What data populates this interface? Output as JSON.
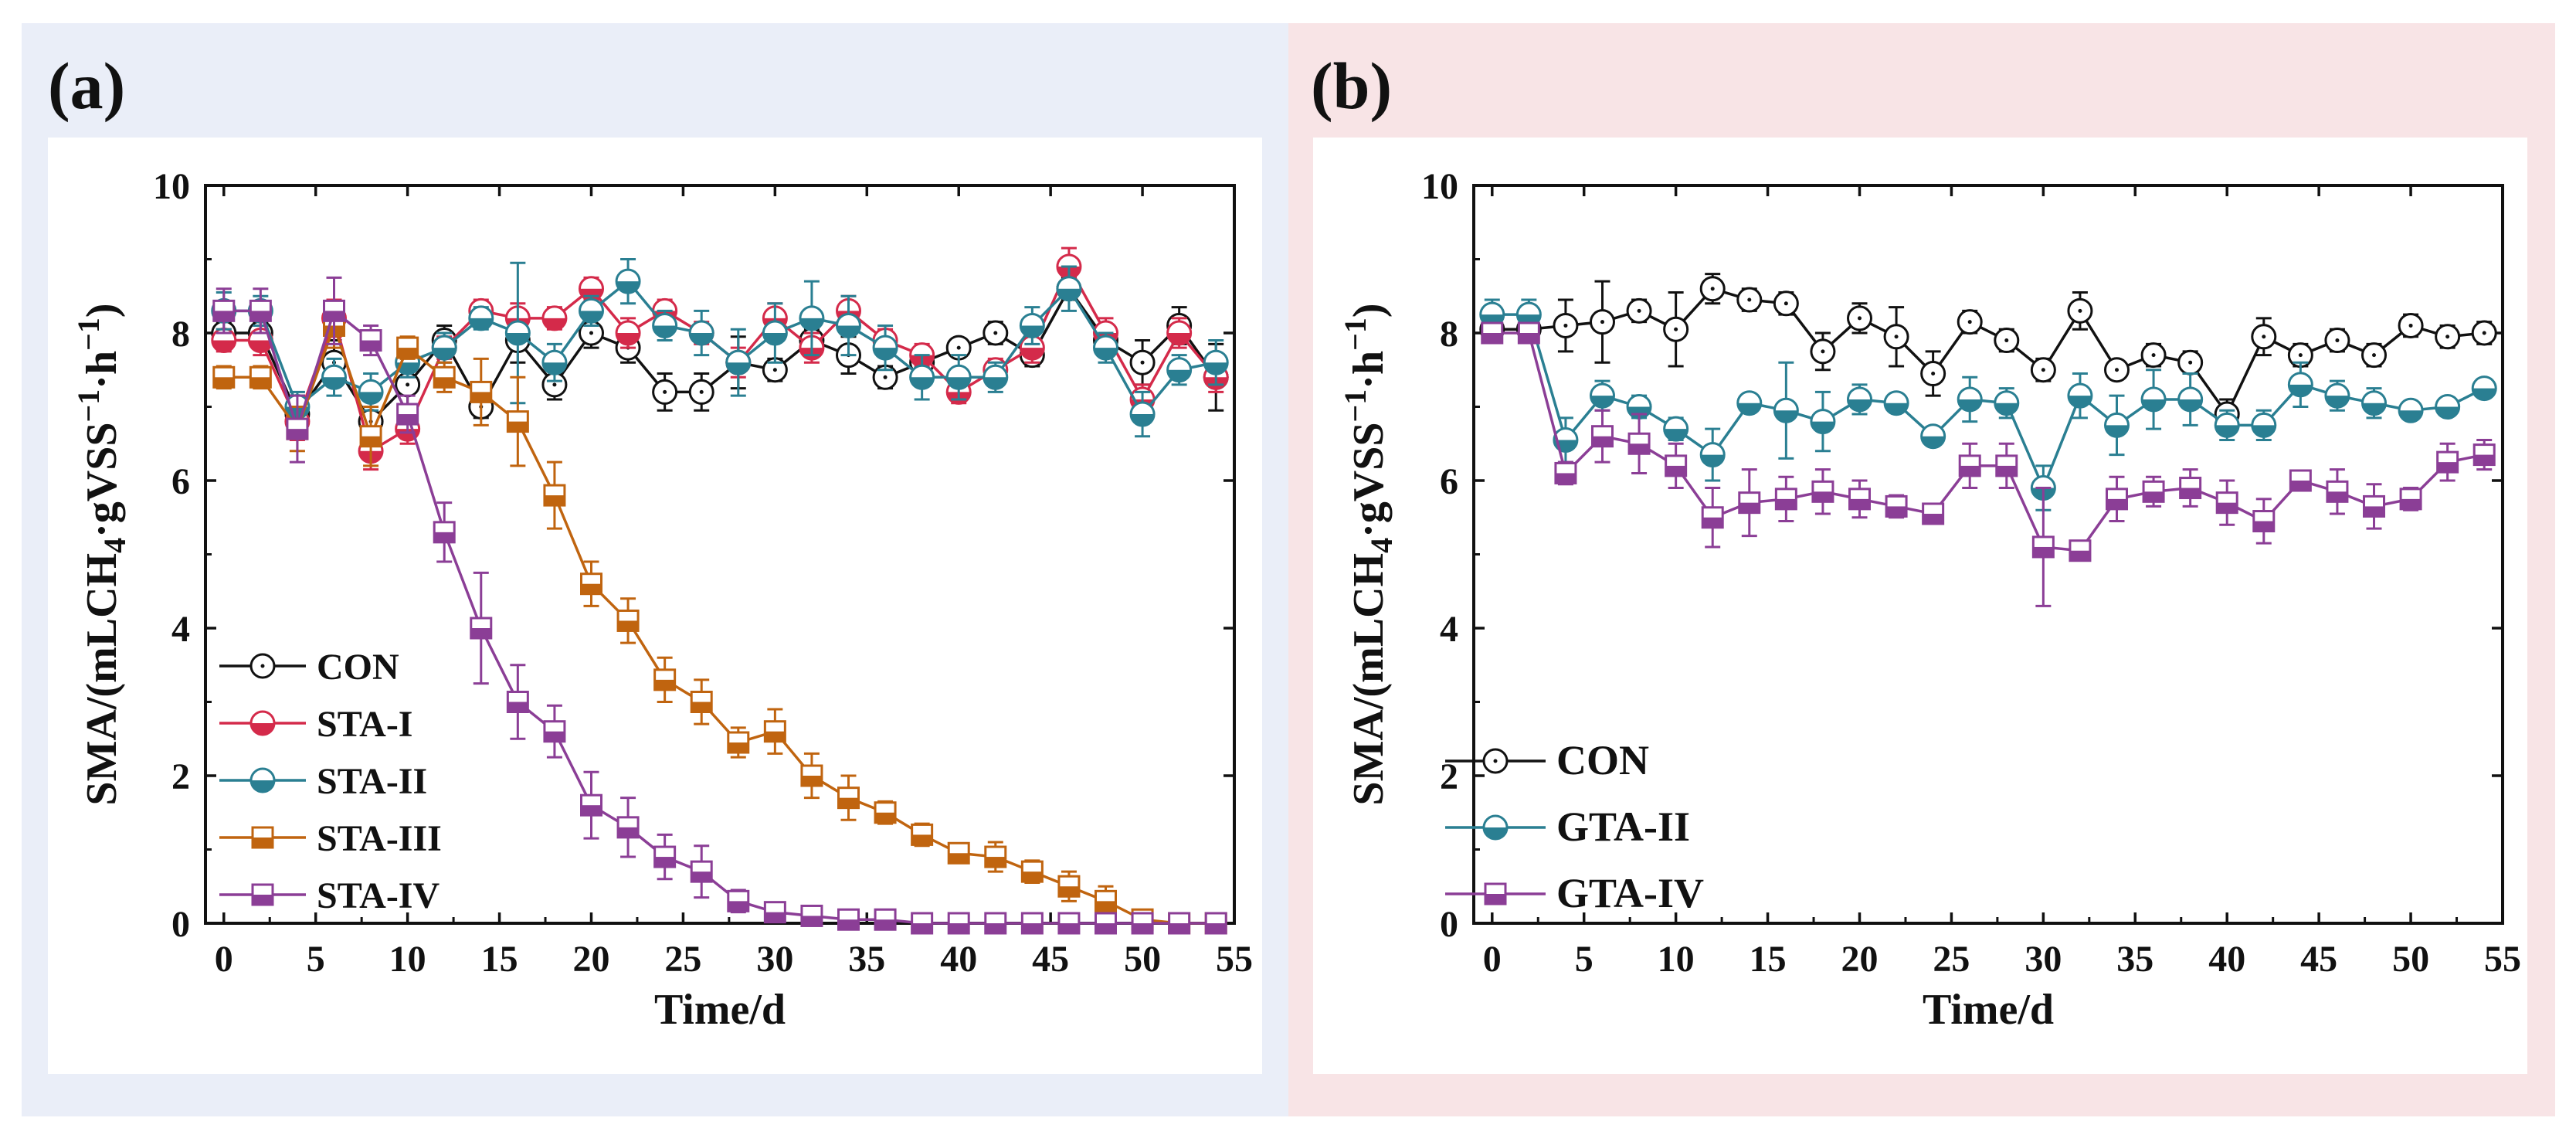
{
  "panels": {
    "a": {
      "label": "(a)",
      "bg": "#eaeef8"
    },
    "b": {
      "label": "(b)",
      "bg": "#f8e4e6"
    }
  },
  "chart_data": [
    {
      "type": "line",
      "panel": "a",
      "xlabel": "Time/d",
      "ylabel": "SMA/(mLCH4·gVSS−1·h−1)",
      "xlim": [
        -1,
        55
      ],
      "ylim": [
        0,
        10
      ],
      "xticks": [
        0,
        5,
        10,
        15,
        20,
        25,
        30,
        35,
        40,
        45,
        50,
        55
      ],
      "yticks": [
        0,
        2,
        4,
        6,
        8,
        10
      ],
      "legend_position": "bottom-left",
      "series": [
        {
          "name": "CON",
          "color": "#111111",
          "marker": "circle-open",
          "x": [
            0,
            2,
            4,
            6,
            8,
            10,
            12,
            14,
            16,
            18,
            20,
            22,
            24,
            26,
            28,
            30,
            32,
            34,
            36,
            38,
            40,
            42,
            44,
            46,
            48,
            50,
            52,
            54
          ],
          "y": [
            8.0,
            8.0,
            6.9,
            7.6,
            6.8,
            7.3,
            7.9,
            7.0,
            7.9,
            7.3,
            8.0,
            7.8,
            7.2,
            7.2,
            7.6,
            7.5,
            7.9,
            7.7,
            7.4,
            7.6,
            7.8,
            8.0,
            7.7,
            8.6,
            7.9,
            7.6,
            8.1,
            7.4
          ],
          "err": [
            0.15,
            0.15,
            0.25,
            0.3,
            0.4,
            0.35,
            0.2,
            0.15,
            0.3,
            0.2,
            0.2,
            0.2,
            0.25,
            0.25,
            0.35,
            0.15,
            0.15,
            0.25,
            0.15,
            0.1,
            0.1,
            0.15,
            0.15,
            0.15,
            0.2,
            0.3,
            0.25,
            0.45
          ]
        },
        {
          "name": "STA-I",
          "color": "#d42a4a",
          "marker": "circle-half",
          "x": [
            0,
            2,
            4,
            6,
            8,
            10,
            12,
            14,
            16,
            18,
            20,
            22,
            24,
            26,
            28,
            30,
            32,
            34,
            36,
            38,
            40,
            42,
            44,
            46,
            48,
            50,
            52,
            54
          ],
          "y": [
            7.9,
            7.9,
            6.8,
            8.2,
            6.4,
            6.7,
            7.8,
            8.3,
            8.2,
            8.2,
            8.6,
            8.0,
            8.3,
            8.0,
            7.6,
            8.2,
            7.8,
            8.3,
            7.9,
            7.7,
            7.2,
            7.5,
            7.8,
            8.9,
            8.0,
            7.1,
            8.0,
            7.4
          ],
          "err": [
            0.15,
            0.2,
            0.25,
            0.25,
            0.25,
            0.2,
            0.15,
            0.15,
            0.2,
            0.15,
            0.15,
            0.2,
            0.15,
            0.15,
            0.2,
            0.2,
            0.2,
            0.2,
            0.15,
            0.15,
            0.15,
            0.15,
            0.2,
            0.25,
            0.2,
            0.2,
            0.2,
            0.2
          ]
        },
        {
          "name": "STA-II",
          "color": "#2a7f92",
          "marker": "circle-half",
          "x": [
            0,
            2,
            4,
            6,
            8,
            10,
            12,
            14,
            16,
            18,
            20,
            22,
            24,
            26,
            28,
            30,
            32,
            34,
            36,
            38,
            40,
            42,
            44,
            46,
            48,
            50,
            52,
            54
          ],
          "y": [
            8.3,
            8.3,
            7.0,
            7.4,
            7.2,
            7.6,
            7.8,
            8.2,
            8.0,
            7.6,
            8.3,
            8.7,
            8.1,
            8.0,
            7.6,
            8.0,
            8.2,
            8.1,
            7.8,
            7.4,
            7.4,
            7.4,
            8.1,
            8.6,
            7.8,
            6.9,
            7.5,
            7.6
          ],
          "err": [
            0.25,
            0.2,
            0.2,
            0.25,
            0.25,
            0.2,
            0.2,
            0.15,
            0.95,
            0.25,
            0.2,
            0.3,
            0.2,
            0.3,
            0.45,
            0.4,
            0.5,
            0.4,
            0.3,
            0.3,
            0.3,
            0.2,
            0.25,
            0.3,
            0.2,
            0.3,
            0.2,
            0.3
          ]
        },
        {
          "name": "STA-III",
          "color": "#c0640f",
          "marker": "square-half",
          "x": [
            0,
            2,
            4,
            6,
            8,
            10,
            12,
            14,
            16,
            18,
            20,
            22,
            24,
            26,
            28,
            30,
            32,
            34,
            36,
            38,
            40,
            42,
            44,
            46,
            48,
            50,
            52,
            54
          ],
          "y": [
            7.4,
            7.4,
            6.7,
            8.1,
            6.6,
            7.8,
            7.4,
            7.2,
            6.8,
            5.8,
            4.6,
            4.1,
            3.3,
            3.0,
            2.45,
            2.6,
            2.0,
            1.7,
            1.5,
            1.2,
            0.95,
            0.9,
            0.7,
            0.5,
            0.3,
            0.05,
            0.0,
            0.0
          ],
          "err": [
            0.15,
            0.15,
            0.3,
            0.3,
            0.4,
            0.15,
            0.2,
            0.45,
            0.6,
            0.45,
            0.3,
            0.3,
            0.3,
            0.3,
            0.2,
            0.3,
            0.3,
            0.3,
            0.15,
            0.15,
            0.1,
            0.2,
            0.15,
            0.2,
            0.2,
            0.05,
            0.0,
            0.0
          ]
        },
        {
          "name": "STA-IV",
          "color": "#8b3e96",
          "marker": "square-half",
          "x": [
            0,
            2,
            4,
            6,
            8,
            10,
            12,
            14,
            16,
            18,
            20,
            22,
            24,
            26,
            28,
            30,
            32,
            34,
            36,
            38,
            40,
            42,
            44,
            46,
            48,
            50,
            52,
            54
          ],
          "y": [
            8.3,
            8.3,
            6.7,
            8.3,
            7.9,
            6.9,
            5.3,
            4.0,
            3.0,
            2.6,
            1.6,
            1.3,
            0.9,
            0.7,
            0.3,
            0.15,
            0.1,
            0.05,
            0.05,
            0.0,
            0.0,
            0.0,
            0.0,
            0.0,
            0.0,
            0.0,
            0.0,
            0.0
          ],
          "err": [
            0.3,
            0.3,
            0.45,
            0.45,
            0.2,
            0.25,
            0.4,
            0.75,
            0.5,
            0.35,
            0.45,
            0.4,
            0.3,
            0.35,
            0.15,
            0.1,
            0.08,
            0.05,
            0.05,
            0.0,
            0.0,
            0.0,
            0.0,
            0.0,
            0.0,
            0.0,
            0.0,
            0.0
          ]
        }
      ]
    },
    {
      "type": "line",
      "panel": "b",
      "xlabel": "Time/d",
      "ylabel": "SMA/(mLCH4·gVSS−1·h−1)",
      "xlim": [
        -1,
        55
      ],
      "ylim": [
        0,
        10
      ],
      "xticks": [
        0,
        5,
        10,
        15,
        20,
        25,
        30,
        35,
        40,
        45,
        50,
        55
      ],
      "yticks": [
        0,
        2,
        4,
        6,
        8,
        10
      ],
      "legend_position": "bottom-left",
      "series": [
        {
          "name": "CON",
          "color": "#111111",
          "marker": "circle-open",
          "x": [
            0,
            2,
            4,
            6,
            8,
            10,
            12,
            14,
            16,
            18,
            20,
            22,
            24,
            26,
            28,
            30,
            32,
            34,
            36,
            38,
            40,
            42,
            44,
            46,
            48,
            50,
            52,
            54
          ],
          "y": [
            8.05,
            8.05,
            8.1,
            8.15,
            8.3,
            8.05,
            8.6,
            8.45,
            8.4,
            7.75,
            8.2,
            7.95,
            7.45,
            8.15,
            7.9,
            7.5,
            8.3,
            7.5,
            7.7,
            7.6,
            6.9,
            7.95,
            7.7,
            7.9,
            7.7,
            8.1,
            7.95,
            8.0
          ],
          "err": [
            0.1,
            0.15,
            0.35,
            0.55,
            0.15,
            0.5,
            0.2,
            0.15,
            0.15,
            0.25,
            0.2,
            0.4,
            0.3,
            0.15,
            0.15,
            0.15,
            0.25,
            0.1,
            0.15,
            0.15,
            0.2,
            0.25,
            0.15,
            0.15,
            0.15,
            0.15,
            0.15,
            0.15
          ]
        },
        {
          "name": "GTA-II",
          "color": "#2a7f92",
          "marker": "circle-half",
          "x": [
            0,
            2,
            4,
            6,
            8,
            10,
            12,
            14,
            16,
            18,
            20,
            22,
            24,
            26,
            28,
            30,
            32,
            34,
            36,
            38,
            40,
            42,
            44,
            46,
            48,
            50,
            52,
            54
          ],
          "y": [
            8.25,
            8.25,
            6.55,
            7.15,
            7.0,
            6.7,
            6.35,
            7.05,
            6.95,
            6.8,
            7.1,
            7.05,
            6.6,
            7.1,
            7.05,
            5.9,
            7.15,
            6.75,
            7.1,
            7.1,
            6.75,
            6.75,
            7.3,
            7.15,
            7.05,
            6.95,
            7.0,
            7.25
          ],
          "err": [
            0.2,
            0.2,
            0.3,
            0.2,
            0.15,
            0.15,
            0.35,
            0.1,
            0.65,
            0.4,
            0.2,
            0.1,
            0.1,
            0.3,
            0.2,
            0.3,
            0.3,
            0.4,
            0.4,
            0.35,
            0.2,
            0.2,
            0.3,
            0.2,
            0.2,
            0.1,
            0.1,
            0.1
          ]
        },
        {
          "name": "GTA-IV",
          "color": "#8b3e96",
          "marker": "square-half",
          "x": [
            0,
            2,
            4,
            6,
            8,
            10,
            12,
            14,
            16,
            18,
            20,
            22,
            24,
            26,
            28,
            30,
            32,
            34,
            36,
            38,
            40,
            42,
            44,
            46,
            48,
            50,
            52,
            54
          ],
          "y": [
            8.0,
            8.0,
            6.1,
            6.6,
            6.5,
            6.2,
            5.5,
            5.7,
            5.75,
            5.85,
            5.75,
            5.65,
            5.55,
            6.2,
            6.2,
            5.1,
            5.05,
            5.75,
            5.85,
            5.9,
            5.7,
            5.45,
            6.0,
            5.85,
            5.65,
            5.75,
            6.25,
            6.35
          ],
          "err": [
            0.1,
            0.1,
            0.15,
            0.35,
            0.4,
            0.3,
            0.4,
            0.45,
            0.3,
            0.3,
            0.25,
            0.15,
            0.1,
            0.3,
            0.3,
            0.8,
            0.1,
            0.3,
            0.2,
            0.25,
            0.3,
            0.3,
            0.1,
            0.3,
            0.3,
            0.15,
            0.25,
            0.2
          ]
        }
      ]
    }
  ]
}
